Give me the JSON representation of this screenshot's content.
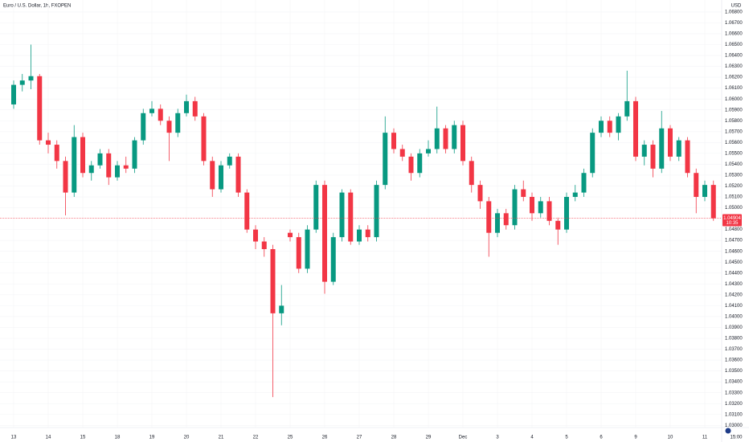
{
  "chart_data": {
    "type": "candlestick",
    "title": "Euro / U.S. Dollar, 1h, FXOPEN",
    "currency": "USD",
    "categories": [
      "13",
      null,
      null,
      null,
      "14",
      null,
      null,
      null,
      "15",
      null,
      null,
      null,
      "18",
      null,
      null,
      null,
      "19",
      null,
      null,
      null,
      "20",
      null,
      null,
      null,
      "21",
      null,
      null,
      null,
      "22",
      null,
      null,
      null,
      "25",
      null,
      null,
      null,
      "26",
      null,
      null,
      null,
      "27",
      null,
      null,
      null,
      "28",
      null,
      null,
      null,
      "29",
      null,
      null,
      null,
      "Dec",
      null,
      null,
      null,
      "3",
      null,
      null,
      null,
      "4",
      null,
      null,
      null,
      "5",
      null,
      null,
      null,
      "6",
      null,
      null,
      null,
      "9",
      null,
      null,
      null,
      "10",
      null,
      null,
      null,
      "11",
      null
    ],
    "open": [
      1.0595,
      1.0613,
      1.0617,
      1.0621,
      1.0562,
      1.0558,
      1.0543,
      1.0514,
      1.0565,
      1.0532,
      1.0539,
      1.055,
      1.0528,
      1.0539,
      1.0536,
      1.0562,
      1.0587,
      1.0591,
      1.058,
      1.0569,
      1.0587,
      1.0598,
      1.0584,
      1.0543,
      1.0517,
      1.0539,
      1.0547,
      1.0514,
      1.048,
      1.0469,
      1.0462,
      1.0403,
      1.0477,
      1.0473,
      1.0444,
      1.048,
      1.0521,
      1.0432,
      1.0473,
      1.0514,
      1.0469,
      1.048,
      1.0473,
      1.0521,
      1.0569,
      1.0554,
      1.0547,
      1.0532,
      1.055,
      1.0554,
      1.0573,
      1.0554,
      1.0576,
      1.0543,
      1.0521,
      1.0506,
      1.0477,
      1.0495,
      1.0484,
      1.0517,
      1.051,
      1.0495,
      1.0506,
      1.0488,
      1.048,
      1.051,
      1.0514,
      1.0532,
      1.0569,
      1.058,
      1.0569,
      1.0584,
      1.0598,
      1.0547,
      1.0558,
      1.0536,
      1.0573,
      1.0547,
      1.0562,
      1.0532,
      1.051,
      1.0521
    ],
    "high": [
      1.0617,
      1.0623,
      1.065,
      1.0623,
      1.0569,
      1.0562,
      1.0547,
      1.0576,
      1.0569,
      1.0543,
      1.0554,
      1.0554,
      1.0543,
      1.0547,
      1.0565,
      1.0591,
      1.0598,
      1.0595,
      1.0584,
      1.0591,
      1.0604,
      1.0602,
      1.0587,
      1.0547,
      1.0543,
      1.055,
      1.055,
      1.0517,
      1.0484,
      1.0473,
      1.0466,
      1.0429,
      1.048,
      1.0477,
      1.0484,
      1.0525,
      1.0525,
      1.0477,
      1.0517,
      1.0517,
      1.0484,
      1.0484,
      1.0525,
      1.0584,
      1.0573,
      1.0558,
      1.055,
      1.0554,
      1.0562,
      1.0593,
      1.0576,
      1.058,
      1.058,
      1.0547,
      1.0525,
      1.051,
      1.0499,
      1.0499,
      1.0521,
      1.0525,
      1.0514,
      1.051,
      1.051,
      1.0491,
      1.0514,
      1.0521,
      1.0536,
      1.0573,
      1.0584,
      1.0584,
      1.0587,
      1.0626,
      1.0602,
      1.0562,
      1.0562,
      1.0589,
      1.0576,
      1.0565,
      1.0565,
      1.0536,
      1.0525,
      1.0525
    ],
    "low": [
      1.0591,
      1.0607,
      1.0609,
      1.0558,
      1.055,
      1.0536,
      1.0493,
      1.051,
      1.0528,
      1.0525,
      1.0536,
      1.0521,
      1.0525,
      1.0532,
      1.0532,
      1.0558,
      1.0584,
      1.0576,
      1.0543,
      1.0565,
      1.0584,
      1.058,
      1.0539,
      1.051,
      1.0514,
      1.0536,
      1.051,
      1.0477,
      1.0462,
      1.0455,
      1.0326,
      1.0392,
      1.0469,
      1.044,
      1.044,
      1.0477,
      1.0421,
      1.0429,
      1.0469,
      1.0466,
      1.0466,
      1.0469,
      1.0469,
      1.0517,
      1.055,
      1.0543,
      1.0525,
      1.0528,
      1.0547,
      1.055,
      1.055,
      1.055,
      1.0539,
      1.0514,
      1.0499,
      1.0455,
      1.0473,
      1.048,
      1.048,
      1.0506,
      1.0488,
      1.0491,
      1.0484,
      1.0466,
      1.0477,
      1.0506,
      1.051,
      1.0528,
      1.0565,
      1.0565,
      1.0562,
      1.058,
      1.0543,
      1.0539,
      1.0528,
      1.0532,
      1.0543,
      1.0543,
      1.0528,
      1.0495,
      1.0506,
      1.0488
    ],
    "close": [
      1.0613,
      1.0617,
      1.0621,
      1.0562,
      1.0558,
      1.0543,
      1.0514,
      1.0565,
      1.0532,
      1.0539,
      1.055,
      1.0528,
      1.0539,
      1.0536,
      1.0562,
      1.0587,
      1.0591,
      1.058,
      1.0569,
      1.0587,
      1.0598,
      1.0584,
      1.0543,
      1.0517,
      1.0539,
      1.0547,
      1.0514,
      1.048,
      1.0469,
      1.0462,
      1.0403,
      1.041,
      1.0473,
      1.0444,
      1.048,
      1.0521,
      1.0432,
      1.0473,
      1.0514,
      1.0469,
      1.048,
      1.0473,
      1.0521,
      1.0569,
      1.0554,
      1.0547,
      1.0532,
      1.055,
      1.0554,
      1.0573,
      1.0554,
      1.0576,
      1.0543,
      1.0521,
      1.0506,
      1.0477,
      1.0495,
      1.0484,
      1.0517,
      1.051,
      1.0495,
      1.0506,
      1.0488,
      1.048,
      1.051,
      1.0514,
      1.0532,
      1.0569,
      1.058,
      1.0569,
      1.0584,
      1.0598,
      1.0547,
      1.0558,
      1.0536,
      1.0573,
      1.0547,
      1.0562,
      1.0532,
      1.051,
      1.0521,
      1.04904
    ],
    "up_color": "#089981",
    "down_color": "#f23645",
    "ylim": [
      1.0298,
      1.0691
    ],
    "yticks": [
      {
        "value": 1.03,
        "label": "1.03000"
      },
      {
        "value": 1.031,
        "label": "1.03100"
      },
      {
        "value": 1.032,
        "label": "1.03200"
      },
      {
        "value": 1.033,
        "label": "1.03300"
      },
      {
        "value": 1.034,
        "label": "1.03400"
      },
      {
        "value": 1.035,
        "label": "1.03500"
      },
      {
        "value": 1.036,
        "label": "1.03600"
      },
      {
        "value": 1.037,
        "label": "1.03700"
      },
      {
        "value": 1.038,
        "label": "1.03800"
      },
      {
        "value": 1.039,
        "label": "1.03900"
      },
      {
        "value": 1.04,
        "label": "1.04000"
      },
      {
        "value": 1.041,
        "label": "1.04100"
      },
      {
        "value": 1.042,
        "label": "1.04200"
      },
      {
        "value": 1.043,
        "label": "1.04300"
      },
      {
        "value": 1.044,
        "label": "1.04400"
      },
      {
        "value": 1.045,
        "label": "1.04500"
      },
      {
        "value": 1.046,
        "label": "1.04600"
      },
      {
        "value": 1.047,
        "label": "1.04700"
      },
      {
        "value": 1.048,
        "label": "1.04800"
      },
      {
        "value": 1.05,
        "label": "1.05000"
      },
      {
        "value": 1.051,
        "label": "1.05100"
      },
      {
        "value": 1.052,
        "label": "1.05200"
      },
      {
        "value": 1.053,
        "label": "1.05300"
      },
      {
        "value": 1.054,
        "label": "1.05400"
      },
      {
        "value": 1.055,
        "label": "1.05500"
      },
      {
        "value": 1.056,
        "label": "1.05600"
      },
      {
        "value": 1.057,
        "label": "1.05700"
      },
      {
        "value": 1.058,
        "label": "1.05800"
      },
      {
        "value": 1.059,
        "label": "1.05900"
      },
      {
        "value": 1.06,
        "label": "1.06000"
      },
      {
        "value": 1.061,
        "label": "1.06100"
      },
      {
        "value": 1.062,
        "label": "1.06200"
      },
      {
        "value": 1.063,
        "label": "1.06300"
      },
      {
        "value": 1.064,
        "label": "1.06400"
      },
      {
        "value": 1.065,
        "label": "1.06500"
      },
      {
        "value": 1.066,
        "label": "1.06600"
      },
      {
        "value": 1.067,
        "label": "1.06700"
      },
      {
        "value": 1.068,
        "label": "1.06800"
      }
    ],
    "grid": true,
    "last_price_label": "1.04904",
    "countdown": "10:35",
    "time_label": "15:00"
  }
}
